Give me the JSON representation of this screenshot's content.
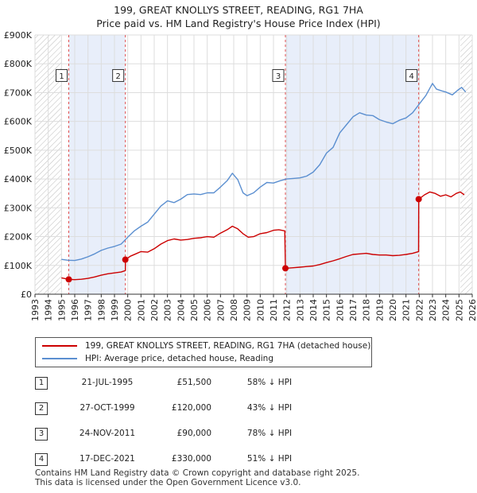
{
  "chart_data": {
    "type": "line",
    "title": "199, GREAT KNOLLYS STREET, READING, RG1 7HA",
    "subtitle": "Price paid vs. HM Land Registry's House Price Index (HPI)",
    "xlabel": "",
    "ylabel": "",
    "xlim": [
      1993,
      2026
    ],
    "ylim": [
      0,
      900000
    ],
    "x_ticks": [
      "1993",
      "1994",
      "1995",
      "1996",
      "1997",
      "1998",
      "1999",
      "2000",
      "2001",
      "2002",
      "2003",
      "2004",
      "2005",
      "2006",
      "2007",
      "2008",
      "2009",
      "2010",
      "2011",
      "2012",
      "2013",
      "2014",
      "2015",
      "2016",
      "2017",
      "2018",
      "2019",
      "2020",
      "2021",
      "2022",
      "2023",
      "2024",
      "2025",
      "2026"
    ],
    "y_ticks": [
      {
        "value": 0,
        "label": "£0"
      },
      {
        "value": 100000,
        "label": "£100K"
      },
      {
        "value": 200000,
        "label": "£200K"
      },
      {
        "value": 300000,
        "label": "£300K"
      },
      {
        "value": 400000,
        "label": "£400K"
      },
      {
        "value": 500000,
        "label": "£500K"
      },
      {
        "value": 600000,
        "label": "£600K"
      },
      {
        "value": 700000,
        "label": "£700K"
      },
      {
        "value": 800000,
        "label": "£800K"
      },
      {
        "value": 900000,
        "label": "£900K"
      }
    ],
    "grid": true,
    "shaded_periods": [
      [
        1995.55,
        1999.82
      ],
      [
        2011.9,
        2021.96
      ]
    ],
    "hatched_regions": [
      [
        1993,
        1995.0
      ],
      [
        2025.1,
        2026
      ]
    ],
    "series": [
      {
        "name": "199, GREAT KNOLLYS STREET, READING, RG1 7HA (detached house)",
        "color": "#cc0000",
        "points": [
          [
            1995.0,
            57000
          ],
          [
            1995.55,
            51500
          ],
          [
            1996.0,
            50500
          ],
          [
            1996.5,
            52000
          ],
          [
            1997.0,
            55000
          ],
          [
            1997.5,
            60000
          ],
          [
            1998.0,
            66000
          ],
          [
            1998.5,
            71000
          ],
          [
            1999.0,
            74000
          ],
          [
            1999.5,
            77000
          ],
          [
            1999.82,
            82000
          ],
          [
            1999.83,
            120000
          ],
          [
            2000.2,
            132000
          ],
          [
            2000.6,
            140000
          ],
          [
            2001.0,
            148000
          ],
          [
            2001.5,
            146000
          ],
          [
            2002.0,
            158000
          ],
          [
            2002.5,
            174000
          ],
          [
            2003.0,
            186000
          ],
          [
            2003.5,
            192000
          ],
          [
            2004.0,
            188000
          ],
          [
            2004.5,
            190000
          ],
          [
            2005.0,
            194000
          ],
          [
            2005.5,
            196000
          ],
          [
            2006.0,
            200000
          ],
          [
            2006.5,
            198000
          ],
          [
            2007.0,
            212000
          ],
          [
            2007.5,
            224000
          ],
          [
            2007.9,
            236000
          ],
          [
            2008.3,
            227000
          ],
          [
            2008.7,
            210000
          ],
          [
            2009.1,
            198000
          ],
          [
            2009.5,
            200000
          ],
          [
            2010.0,
            210000
          ],
          [
            2010.5,
            214000
          ],
          [
            2011.0,
            222000
          ],
          [
            2011.4,
            224000
          ],
          [
            2011.85,
            220000
          ],
          [
            2011.9,
            90000
          ],
          [
            2012.5,
            92000
          ],
          [
            2013.0,
            94000
          ],
          [
            2013.5,
            96000
          ],
          [
            2014.0,
            98000
          ],
          [
            2014.5,
            103000
          ],
          [
            2015.0,
            110000
          ],
          [
            2015.5,
            116000
          ],
          [
            2016.0,
            123000
          ],
          [
            2016.5,
            131000
          ],
          [
            2017.0,
            138000
          ],
          [
            2017.5,
            140000
          ],
          [
            2018.0,
            142000
          ],
          [
            2018.5,
            138000
          ],
          [
            2019.0,
            136000
          ],
          [
            2019.5,
            136000
          ],
          [
            2020.0,
            134000
          ],
          [
            2020.5,
            135000
          ],
          [
            2021.0,
            138000
          ],
          [
            2021.5,
            142000
          ],
          [
            2021.95,
            148000
          ],
          [
            2021.96,
            330000
          ],
          [
            2022.4,
            345000
          ],
          [
            2022.8,
            355000
          ],
          [
            2023.2,
            350000
          ],
          [
            2023.6,
            340000
          ],
          [
            2024.0,
            345000
          ],
          [
            2024.4,
            338000
          ],
          [
            2024.8,
            350000
          ],
          [
            2025.1,
            355000
          ],
          [
            2025.4,
            345000
          ]
        ]
      },
      {
        "name": "HPI: Average price, detached house, Reading",
        "color": "#5b8fd0",
        "points": [
          [
            1995.0,
            121000
          ],
          [
            1995.5,
            118000
          ],
          [
            1996.0,
            117000
          ],
          [
            1996.5,
            122000
          ],
          [
            1997.0,
            130000
          ],
          [
            1997.5,
            140000
          ],
          [
            1998.0,
            152000
          ],
          [
            1998.5,
            160000
          ],
          [
            1999.0,
            166000
          ],
          [
            1999.5,
            174000
          ],
          [
            2000.0,
            198000
          ],
          [
            2000.5,
            220000
          ],
          [
            2001.0,
            236000
          ],
          [
            2001.5,
            250000
          ],
          [
            2002.0,
            278000
          ],
          [
            2002.5,
            306000
          ],
          [
            2003.0,
            324000
          ],
          [
            2003.5,
            318000
          ],
          [
            2004.0,
            330000
          ],
          [
            2004.5,
            346000
          ],
          [
            2005.0,
            348000
          ],
          [
            2005.5,
            346000
          ],
          [
            2006.0,
            352000
          ],
          [
            2006.5,
            352000
          ],
          [
            2007.0,
            372000
          ],
          [
            2007.5,
            394000
          ],
          [
            2007.9,
            420000
          ],
          [
            2008.3,
            398000
          ],
          [
            2008.7,
            352000
          ],
          [
            2009.0,
            342000
          ],
          [
            2009.5,
            352000
          ],
          [
            2010.0,
            372000
          ],
          [
            2010.5,
            388000
          ],
          [
            2011.0,
            386000
          ],
          [
            2011.5,
            394000
          ],
          [
            2012.0,
            400000
          ],
          [
            2012.5,
            402000
          ],
          [
            2013.0,
            404000
          ],
          [
            2013.5,
            410000
          ],
          [
            2014.0,
            424000
          ],
          [
            2014.5,
            450000
          ],
          [
            2015.0,
            490000
          ],
          [
            2015.5,
            510000
          ],
          [
            2016.0,
            560000
          ],
          [
            2016.5,
            588000
          ],
          [
            2017.0,
            616000
          ],
          [
            2017.5,
            630000
          ],
          [
            2018.0,
            622000
          ],
          [
            2018.5,
            620000
          ],
          [
            2019.0,
            606000
          ],
          [
            2019.5,
            598000
          ],
          [
            2020.0,
            592000
          ],
          [
            2020.5,
            604000
          ],
          [
            2021.0,
            612000
          ],
          [
            2021.5,
            630000
          ],
          [
            2022.0,
            660000
          ],
          [
            2022.5,
            690000
          ],
          [
            2023.0,
            732000
          ],
          [
            2023.3,
            712000
          ],
          [
            2023.7,
            706000
          ],
          [
            2024.0,
            702000
          ],
          [
            2024.5,
            692000
          ],
          [
            2024.9,
            708000
          ],
          [
            2025.2,
            718000
          ],
          [
            2025.5,
            702000
          ]
        ]
      }
    ],
    "sale_markers": [
      {
        "label": "1",
        "x": 1995.55,
        "y": 51500
      },
      {
        "label": "2",
        "x": 1999.82,
        "y": 120000
      },
      {
        "label": "3",
        "x": 2011.9,
        "y": 90000
      },
      {
        "label": "4",
        "x": 2021.96,
        "y": 330000
      }
    ],
    "marker_box_y": 780000
  },
  "legend": {
    "property": "199, GREAT KNOLLYS STREET, READING, RG1 7HA (detached house)",
    "hpi": "HPI: Average price, detached house, Reading"
  },
  "sales": [
    {
      "num": "1",
      "date": "21-JUL-1995",
      "price": "£51,500",
      "hpi": "58% ↓ HPI"
    },
    {
      "num": "2",
      "date": "27-OCT-1999",
      "price": "£120,000",
      "hpi": "43% ↓ HPI"
    },
    {
      "num": "3",
      "date": "24-NOV-2011",
      "price": "£90,000",
      "hpi": "78% ↓ HPI"
    },
    {
      "num": "4",
      "date": "17-DEC-2021",
      "price": "£330,000",
      "hpi": "51% ↓ HPI"
    }
  ],
  "footer": {
    "line1": "Contains HM Land Registry data © Crown copyright and database right 2025.",
    "line2": "This data is licensed under the Open Government Licence v3.0."
  },
  "colors": {
    "property": "#cc0000",
    "hpi": "#5b8fd0",
    "shade": "#e8eefa"
  }
}
